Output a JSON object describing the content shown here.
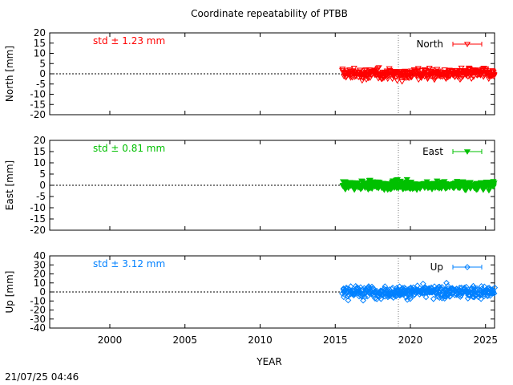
{
  "title": "Coordinate repeatability of PTBB",
  "footer_timestamp": "21/07/25 04:46",
  "x_axis": {
    "label": "YEAR",
    "range": [
      1996,
      2025.6
    ],
    "ticks": [
      2000,
      2005,
      2010,
      2015,
      2020,
      2025
    ],
    "tick_labels": [
      "2000",
      "2005",
      "2010",
      "2015",
      "2020",
      "2025"
    ],
    "reference_line_x": 2019.2
  },
  "chart_data": [
    {
      "type": "scatter",
      "name": "North",
      "ylabel": "North [mm]",
      "ylim": [
        -20,
        20
      ],
      "yticks": [
        20,
        15,
        10,
        5,
        0,
        -5,
        -10,
        -15,
        -20
      ],
      "ytick_labels": [
        "20",
        "15",
        "10",
        "5",
        "0",
        "-5",
        "-10",
        "-15",
        "-20"
      ],
      "std_text": "std ± 1.23 mm",
      "color": "#ff0000",
      "marker": "triangle-down-open",
      "legend": "top-right",
      "x_start": 2015.5,
      "x_end": 2025.6,
      "approx_mean": 0,
      "approx_spread": 2.5
    },
    {
      "type": "scatter",
      "name": "East",
      "ylabel": "East [mm]",
      "ylim": [
        -20,
        20
      ],
      "yticks": [
        20,
        15,
        10,
        5,
        0,
        -5,
        -10,
        -15,
        -20
      ],
      "ytick_labels": [
        "20",
        "15",
        "10",
        "5",
        "0",
        "-5",
        "-10",
        "-15",
        "-20"
      ],
      "std_text": "std ± 0.81 mm",
      "color": "#00c000",
      "marker": "triangle-down-filled",
      "legend": "top-right",
      "x_start": 2015.5,
      "x_end": 2025.6,
      "approx_mean": 0,
      "approx_spread": 1.8
    },
    {
      "type": "scatter",
      "name": "Up",
      "ylabel": "Up [mm]",
      "ylim": [
        -40,
        40
      ],
      "yticks": [
        40,
        30,
        20,
        10,
        0,
        -10,
        -20,
        -30,
        -40
      ],
      "ytick_labels": [
        "40",
        "30",
        "20",
        "10",
        "0",
        "-10",
        "-20",
        "-30",
        "-40"
      ],
      "std_text": "std ± 3.12 mm",
      "color": "#0080ff",
      "marker": "diamond-open",
      "legend": "top-right",
      "x_start": 2015.5,
      "x_end": 2025.6,
      "approx_mean": 0,
      "approx_spread": 6
    }
  ]
}
